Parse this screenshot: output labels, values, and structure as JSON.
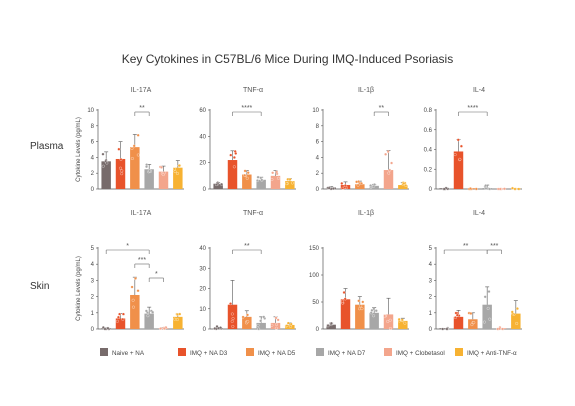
{
  "title": "Key Cytokines in C57BL/6 Mice During IMQ-Induced Psoriasis",
  "colors": {
    "Naive + NA": "#776b6b",
    "IMQ + NA D3": "#e8532b",
    "IMQ + NA D5": "#f0904a",
    "IMQ + NA D7": "#a7a7a7",
    "IMQ + Clobetasol": "#f3a58c",
    "IMQ + Anti-TNF-α": "#f7b232"
  },
  "chart_data": {
    "type": "bar",
    "ylabel": "Cytokine Levels (pg/mL)",
    "row_labels": [
      "Plasma",
      "Skin"
    ],
    "groups": [
      "Naive + NA",
      "IMQ + NA D3",
      "IMQ + NA D5",
      "IMQ + NA D7",
      "IMQ + Clobetasol",
      "IMQ + Anti-TNF-α"
    ],
    "panels": [
      {
        "row": "Plasma",
        "title": "IL-17A",
        "ylim": [
          0,
          10
        ],
        "ticks": [
          0,
          2,
          4,
          6,
          8,
          10
        ],
        "values": [
          3.5,
          3.8,
          5.3,
          2.5,
          2.2,
          2.7
        ],
        "errors": [
          1.2,
          2.2,
          1.6,
          0.6,
          0.7,
          0.9
        ],
        "significance": [
          {
            "from": 2,
            "to": 3,
            "label": "**"
          }
        ]
      },
      {
        "row": "Plasma",
        "title": "TNF-α",
        "ylim": [
          0,
          60
        ],
        "ticks": [
          0,
          20,
          40,
          60
        ],
        "values": [
          4,
          22,
          11,
          7,
          10,
          6
        ],
        "errors": [
          1,
          7,
          3,
          2,
          4,
          2
        ],
        "significance": [
          {
            "from": 1,
            "to": 3,
            "label": "****"
          }
        ]
      },
      {
        "row": "Plasma",
        "title": "IL-1β",
        "ylim": [
          0,
          10
        ],
        "ticks": [
          0,
          2,
          4,
          6,
          8,
          10
        ],
        "values": [
          0.2,
          0.5,
          0.6,
          0.4,
          2.4,
          0.5
        ],
        "errors": [
          0.1,
          0.4,
          0.4,
          0.2,
          2.5,
          0.3
        ],
        "significance": [
          {
            "from": 3,
            "to": 4,
            "label": "**"
          }
        ]
      },
      {
        "row": "Plasma",
        "title": "IL-4",
        "ylim": [
          0,
          0.8
        ],
        "ticks": [
          0,
          0.2,
          0.4,
          0.6,
          0.8
        ],
        "values": [
          0.0,
          0.38,
          0.0,
          0.01,
          0.0,
          0.0
        ],
        "errors": [
          0,
          0.12,
          0,
          0.03,
          0,
          0
        ],
        "significance": [
          {
            "from": 1,
            "to": 3,
            "label": "****"
          }
        ]
      },
      {
        "row": "Skin",
        "title": "IL-17A",
        "ylim": [
          0,
          5
        ],
        "ticks": [
          0,
          1,
          2,
          3,
          4,
          5
        ],
        "values": [
          0.05,
          0.65,
          2.1,
          0.95,
          0.05,
          0.75
        ],
        "errors": [
          0.03,
          0.3,
          1.1,
          0.4,
          0.03,
          0.2
        ],
        "significance": [
          {
            "from": 0,
            "to": 3,
            "label": "*",
            "level": 1
          },
          {
            "from": 2,
            "to": 3,
            "label": "***",
            "level": 2
          },
          {
            "from": 3,
            "to": 4,
            "label": "*",
            "level": 3
          }
        ]
      },
      {
        "row": "Skin",
        "title": "TNF-α",
        "ylim": [
          0,
          40
        ],
        "ticks": [
          0,
          10,
          20,
          30,
          40
        ],
        "values": [
          0.5,
          12,
          6,
          3,
          3,
          2
        ],
        "errors": [
          0.3,
          12,
          3,
          3,
          3,
          1
        ],
        "significance": [
          {
            "from": 1,
            "to": 3,
            "label": "**"
          }
        ]
      },
      {
        "row": "Skin",
        "title": "IL-1β",
        "ylim": [
          0,
          150
        ],
        "ticks": [
          0,
          50,
          100,
          150
        ],
        "values": [
          8,
          55,
          45,
          30,
          27,
          15
        ],
        "errors": [
          3,
          20,
          15,
          10,
          30,
          5
        ],
        "significance": []
      },
      {
        "row": "Skin",
        "title": "IL-4",
        "ylim": [
          0,
          5
        ],
        "ticks": [
          0,
          1,
          2,
          3,
          4,
          5
        ],
        "values": [
          0.0,
          0.75,
          0.6,
          1.5,
          0.0,
          0.95
        ],
        "errors": [
          0,
          0.4,
          0.4,
          1.1,
          0,
          0.8
        ],
        "significance": [
          {
            "from": 0,
            "to": 3,
            "label": "**",
            "level": 1
          },
          {
            "from": 3,
            "to": 4,
            "label": "***",
            "level": 1
          }
        ]
      }
    ]
  }
}
